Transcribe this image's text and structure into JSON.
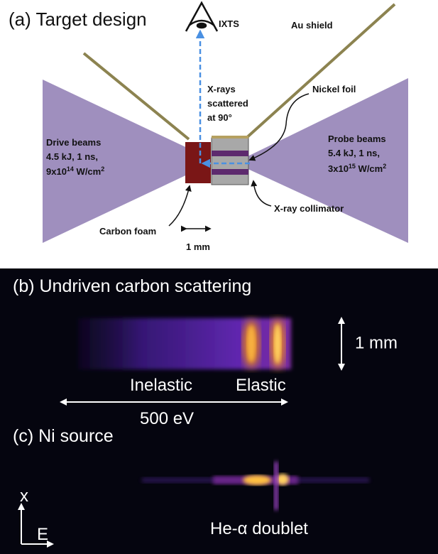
{
  "panel_a": {
    "title": "(a) Target design",
    "detector": "IXTS",
    "shield": "Au shield",
    "foil": "Nickel foil",
    "xrays": [
      "X-rays",
      "scattered",
      "at 90°"
    ],
    "drive_beams": {
      "lines": [
        "Drive beams",
        "4.5 kJ, 1 ns,"
      ],
      "intensity": {
        "base": "9x10",
        "exponent": "14",
        "unit": " W/cm",
        "unit_exponent": "2"
      }
    },
    "probe_beams": {
      "lines": [
        "Probe beams",
        "5.4 kJ, 1 ns,"
      ],
      "intensity": {
        "base": "3x10",
        "exponent": "15",
        "unit": " W/cm",
        "unit_exponent": "2"
      }
    },
    "collimator": "X-ray collimator",
    "foam": "Carbon foam",
    "scale": "1 mm"
  },
  "panel_b": {
    "title": "(b) Undriven carbon scattering",
    "scale": "1 mm",
    "inelastic": "Inelastic",
    "elastic": "Elastic",
    "energy_span": "500 eV"
  },
  "panel_c": {
    "title": "(c) Ni source",
    "axis_x": "x",
    "axis_e": "E",
    "feature": "He-α doublet"
  }
}
